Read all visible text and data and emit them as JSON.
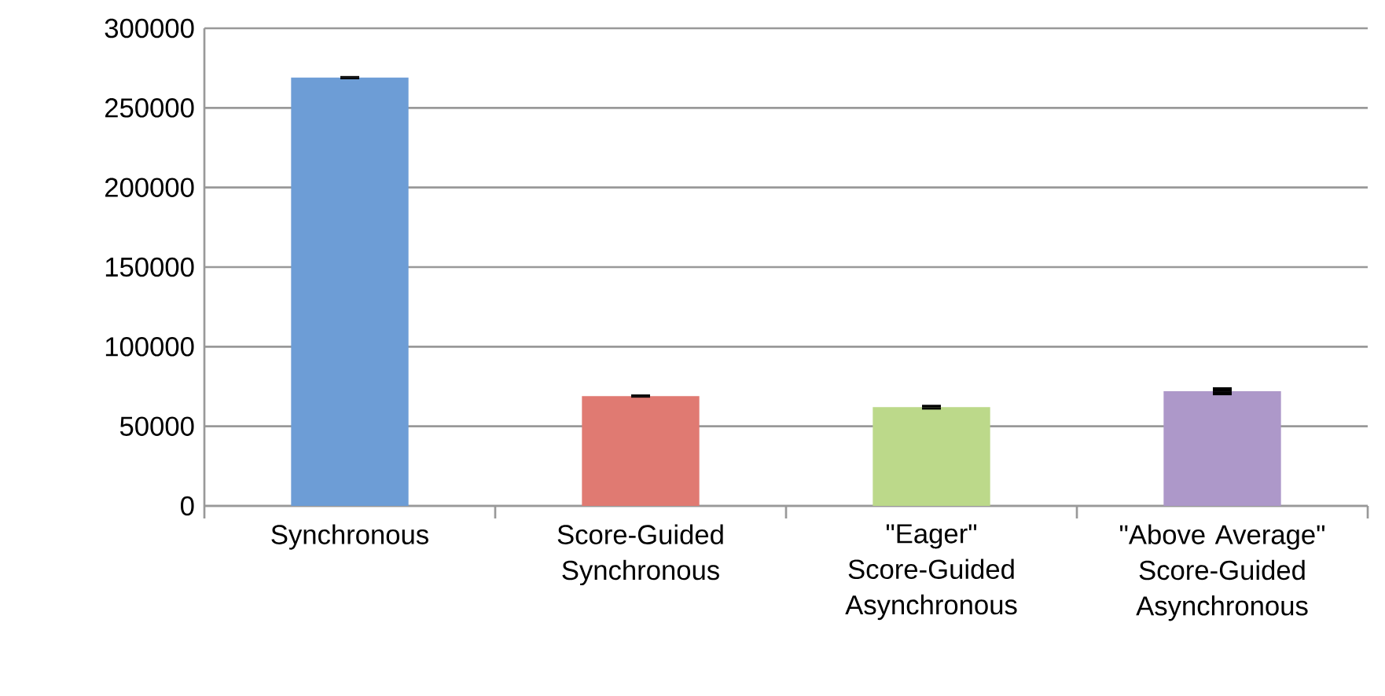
{
  "chart_data": {
    "type": "bar",
    "categories": [
      "Synchronous",
      "Score-Guided Synchronous",
      "\"Eager\" Score-Guided Asynchronous",
      "\"Above Average\" Score-Guided Asynchronous"
    ],
    "values": [
      269000,
      69000,
      62000,
      72000
    ],
    "errors": [
      1000,
      1000,
      1500,
      2500
    ],
    "colors": [
      "#6d9dd6",
      "#e07a72",
      "#bcd98a",
      "#ad98c9"
    ],
    "ylim": [
      0,
      300000
    ],
    "yticks": [
      0,
      50000,
      100000,
      150000,
      200000,
      250000,
      300000
    ],
    "grid": "y"
  }
}
